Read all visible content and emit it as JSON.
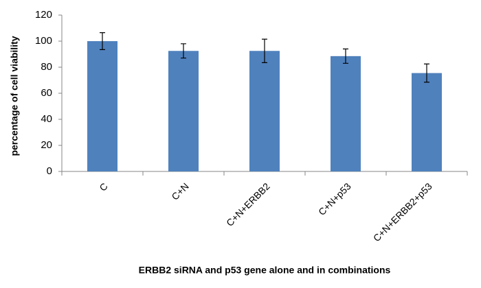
{
  "chart_data": {
    "type": "bar",
    "categories": [
      "C",
      "C+N",
      "C+N+ERBB2",
      "C+N+p53",
      "C+N+ERBB2+p53"
    ],
    "values": [
      100,
      92.5,
      92.5,
      88.5,
      75.5
    ],
    "errors": [
      6.5,
      5.5,
      9,
      5.5,
      7
    ],
    "color": "#4f81bd",
    "ylim": [
      0,
      120
    ],
    "yticks": [
      0,
      20,
      40,
      60,
      80,
      100,
      120
    ],
    "grid": false,
    "ylabel": "percentage of cell viability",
    "xlabel": "ERBB2 siRNA and p53 gene alone and in combinations"
  }
}
